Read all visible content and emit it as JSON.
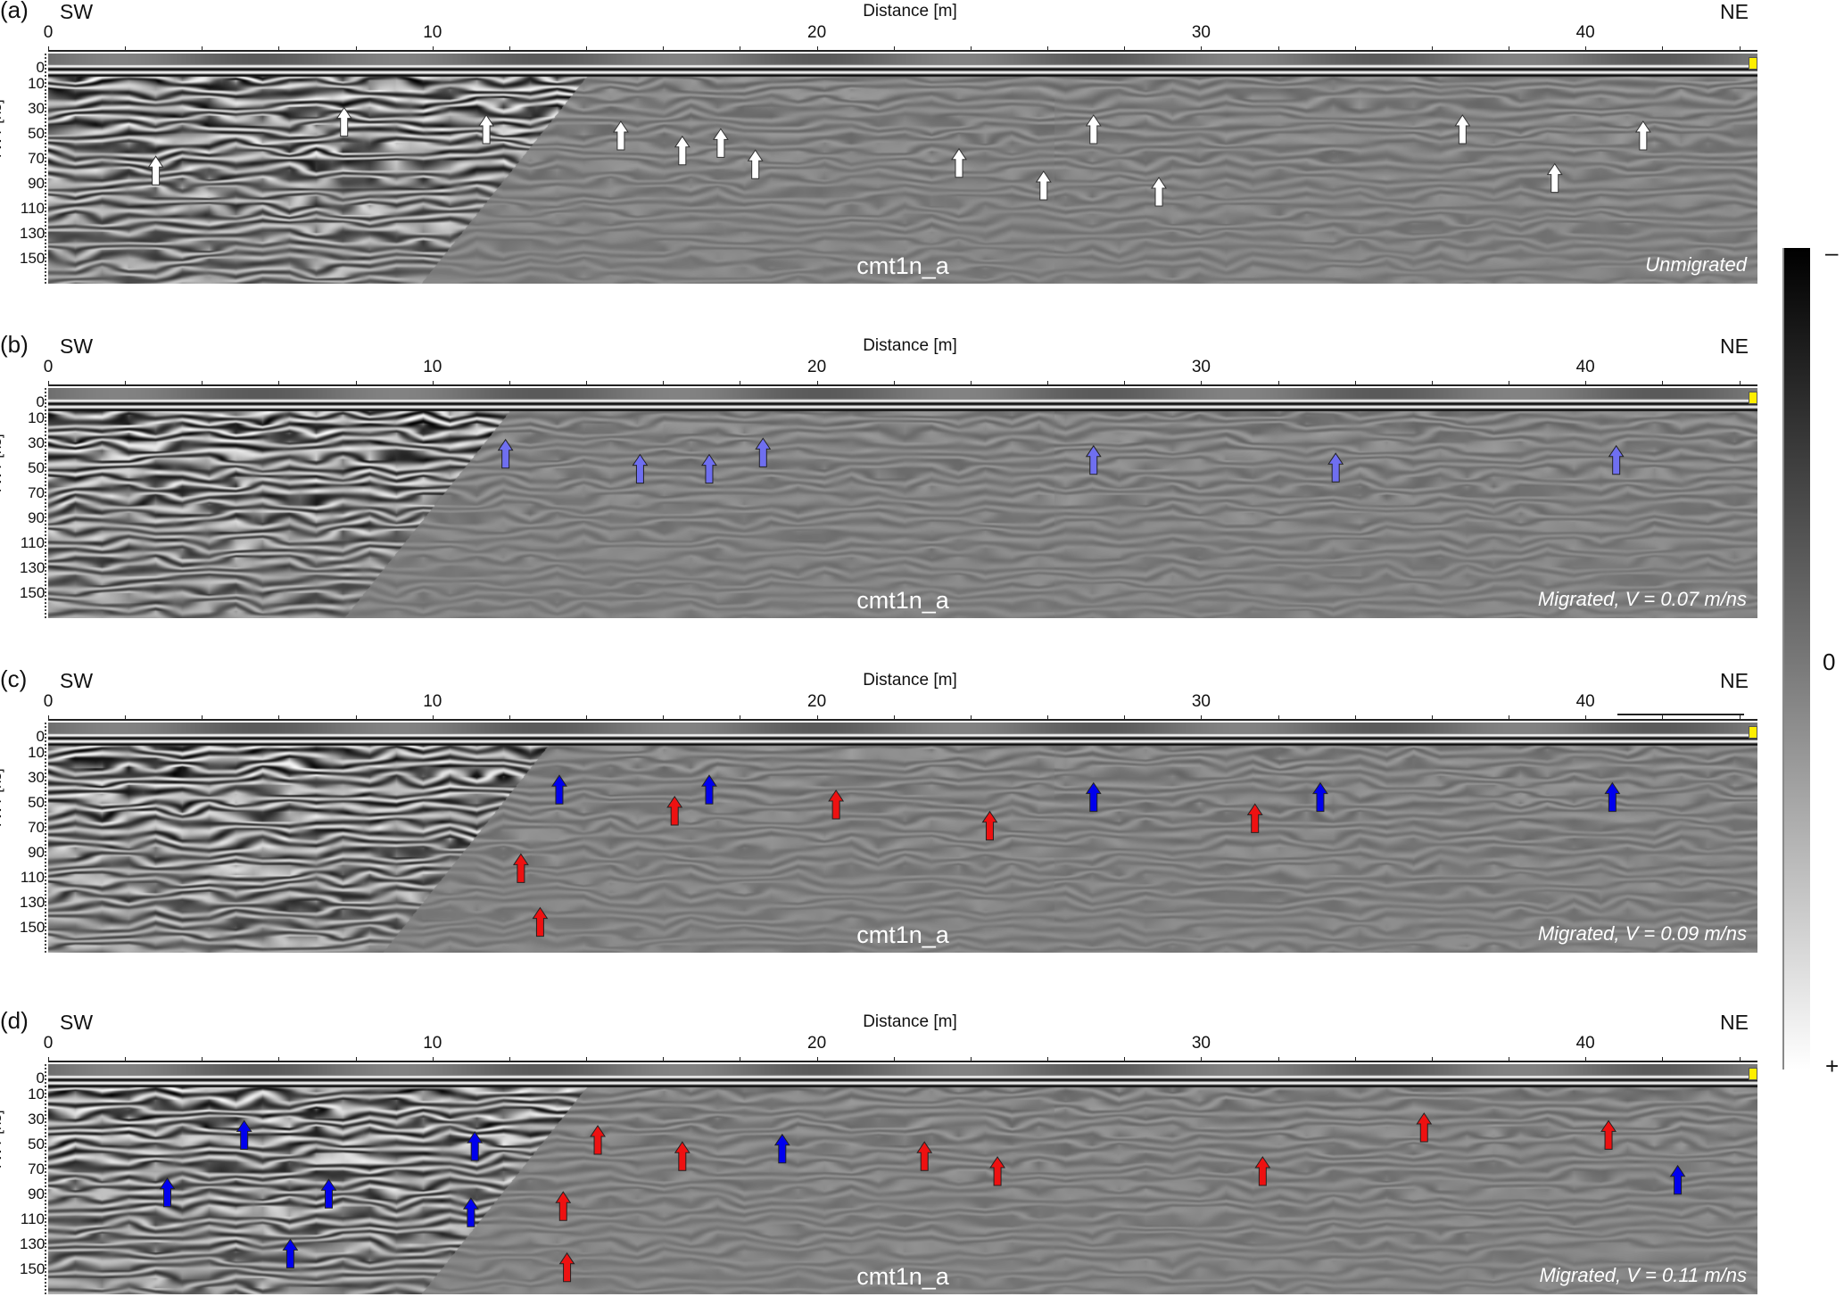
{
  "colorbar": {
    "min_label": "–",
    "mid_label": "0",
    "max_label": "+"
  },
  "chart_data": {
    "type": "heatmap",
    "description_labels": {
      "xlabel": "Distance [m]",
      "ylabel": "TWT [ns]"
    },
    "x_ticks": [
      0,
      10,
      20,
      30,
      40
    ],
    "y_ticks": [
      0,
      10,
      30,
      50,
      70,
      90,
      110,
      130,
      150
    ],
    "xlim": [
      0,
      44.5
    ],
    "ylim": [
      -9,
      165
    ],
    "colors": {
      "white": "#ffffff",
      "light_blue": "#6f6ff0",
      "blue": "#0000ee",
      "red": "#ee1111"
    },
    "panels": [
      {
        "label": "(a)",
        "left": "SW",
        "right": "NE",
        "line": "cmt1n_a",
        "mode": "Unmigrated",
        "contrast_split_m": 14,
        "arrows": [
          {
            "x": 2.8,
            "t": 68,
            "c": "white"
          },
          {
            "x": 7.7,
            "t": 29,
            "c": "white"
          },
          {
            "x": 11.4,
            "t": 35,
            "c": "white"
          },
          {
            "x": 14.9,
            "t": 40,
            "c": "white"
          },
          {
            "x": 16.5,
            "t": 52,
            "c": "white"
          },
          {
            "x": 17.5,
            "t": 46,
            "c": "white"
          },
          {
            "x": 18.4,
            "t": 63,
            "c": "white"
          },
          {
            "x": 23.7,
            "t": 62,
            "c": "white"
          },
          {
            "x": 25.9,
            "t": 80,
            "c": "white"
          },
          {
            "x": 27.2,
            "t": 35,
            "c": "white"
          },
          {
            "x": 28.9,
            "t": 85,
            "c": "white"
          },
          {
            "x": 36.8,
            "t": 35,
            "c": "white"
          },
          {
            "x": 39.2,
            "t": 74,
            "c": "white"
          },
          {
            "x": 41.5,
            "t": 40,
            "c": "white"
          }
        ]
      },
      {
        "label": "(b)",
        "left": "SW",
        "right": "NE",
        "line": "cmt1n_a",
        "mode": "Migrated, V = 0.07 m/ns",
        "contrast_split_m": 12,
        "arrows": [
          {
            "x": 11.9,
            "t": 27,
            "c": "light_blue"
          },
          {
            "x": 15.4,
            "t": 39,
            "c": "light_blue"
          },
          {
            "x": 17.2,
            "t": 39,
            "c": "light_blue"
          },
          {
            "x": 18.6,
            "t": 26,
            "c": "light_blue"
          },
          {
            "x": 27.2,
            "t": 32,
            "c": "light_blue"
          },
          {
            "x": 33.5,
            "t": 38,
            "c": "light_blue"
          },
          {
            "x": 40.8,
            "t": 32,
            "c": "light_blue"
          }
        ]
      },
      {
        "label": "(c)",
        "left": "SW",
        "right": "NE",
        "line": "cmt1n_a",
        "mode": "Migrated, V = 0.09 m/ns",
        "contrast_split_m": 13,
        "arrows": [
          {
            "x": 13.3,
            "t": 28,
            "c": "blue"
          },
          {
            "x": 16.3,
            "t": 45,
            "c": "red"
          },
          {
            "x": 17.2,
            "t": 28,
            "c": "blue"
          },
          {
            "x": 20.5,
            "t": 40,
            "c": "red"
          },
          {
            "x": 24.5,
            "t": 57,
            "c": "red"
          },
          {
            "x": 27.2,
            "t": 34,
            "c": "blue"
          },
          {
            "x": 31.4,
            "t": 51,
            "c": "red"
          },
          {
            "x": 33.1,
            "t": 34,
            "c": "blue"
          },
          {
            "x": 40.7,
            "t": 34,
            "c": "blue"
          },
          {
            "x": 12.3,
            "t": 91,
            "c": "red"
          },
          {
            "x": 12.8,
            "t": 134,
            "c": "red"
          }
        ]
      },
      {
        "label": "(d)",
        "left": "SW",
        "right": "NE",
        "line": "cmt1n_a",
        "mode": "Migrated, V = 0.11 m/ns",
        "contrast_split_m": 14,
        "arrows": [
          {
            "x": 3.1,
            "t": 77,
            "c": "blue"
          },
          {
            "x": 5.1,
            "t": 31,
            "c": "blue"
          },
          {
            "x": 7.3,
            "t": 78,
            "c": "blue"
          },
          {
            "x": 11.1,
            "t": 40,
            "c": "blue"
          },
          {
            "x": 11.0,
            "t": 93,
            "c": "blue"
          },
          {
            "x": 6.3,
            "t": 126,
            "c": "blue"
          },
          {
            "x": 14.3,
            "t": 35,
            "c": "red"
          },
          {
            "x": 16.5,
            "t": 48,
            "c": "red"
          },
          {
            "x": 19.1,
            "t": 42,
            "c": "blue"
          },
          {
            "x": 22.8,
            "t": 48,
            "c": "red"
          },
          {
            "x": 24.7,
            "t": 60,
            "c": "red"
          },
          {
            "x": 31.6,
            "t": 60,
            "c": "red"
          },
          {
            "x": 35.8,
            "t": 25,
            "c": "red"
          },
          {
            "x": 40.6,
            "t": 31,
            "c": "red"
          },
          {
            "x": 42.4,
            "t": 67,
            "c": "blue"
          },
          {
            "x": 13.4,
            "t": 88,
            "c": "red"
          },
          {
            "x": 13.5,
            "t": 137,
            "c": "red"
          }
        ]
      }
    ]
  }
}
